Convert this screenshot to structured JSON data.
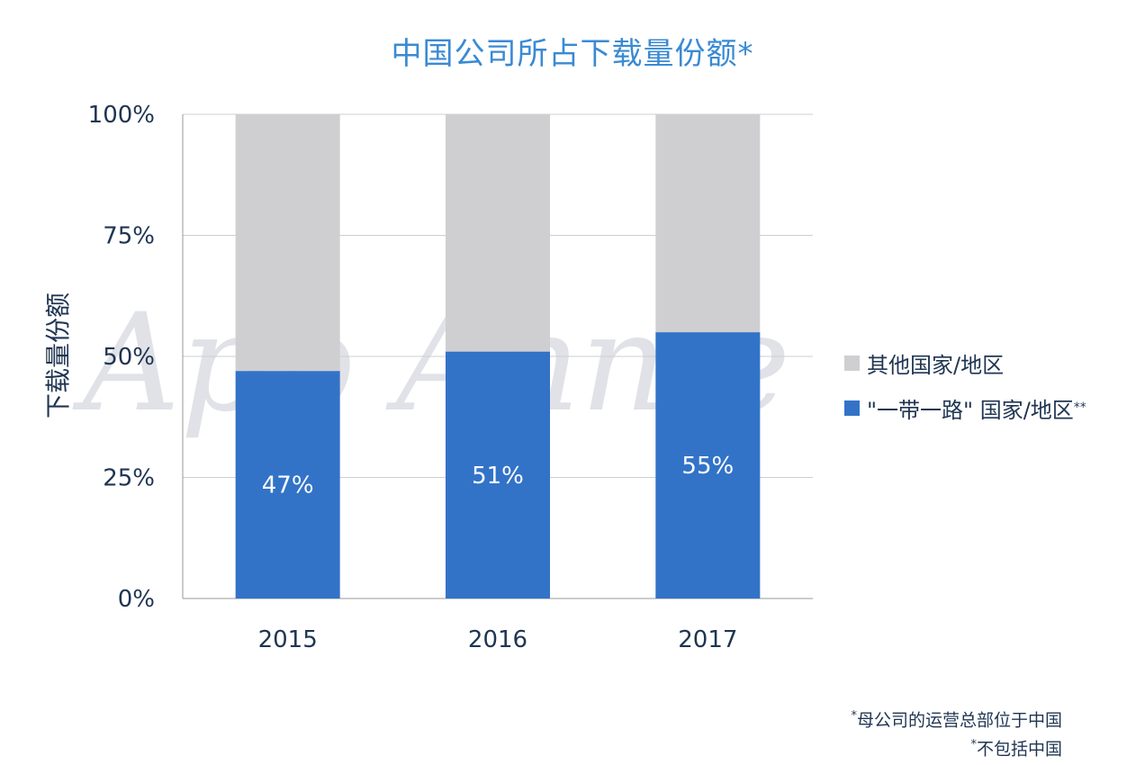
{
  "chart_data": {
    "type": "bar",
    "stacked": true,
    "title": "中国公司所占下载量份额*",
    "ylabel": "下载量份额",
    "xlabel": "",
    "categories": [
      "2015",
      "2016",
      "2017"
    ],
    "ylim": [
      0,
      100
    ],
    "yticks": [
      "0%",
      "25%",
      "50%",
      "75%",
      "100%"
    ],
    "series": [
      {
        "name": "\"一带一路\" 国家/地区",
        "name_suffix": "**",
        "values": [
          47,
          51,
          55
        ],
        "labels": [
          "47%",
          "51%",
          "55%"
        ],
        "color": "#3273c8"
      },
      {
        "name": "其他国家/地区",
        "values": [
          53,
          49,
          45
        ],
        "color": "#cfcfd1"
      }
    ],
    "grid": true,
    "legend_position": "right"
  },
  "watermark": "App Annie",
  "footnotes": [
    {
      "mark": "*",
      "text": "母公司的运营总部位于中国"
    },
    {
      "mark": "*",
      "text": "不包括中国"
    }
  ]
}
